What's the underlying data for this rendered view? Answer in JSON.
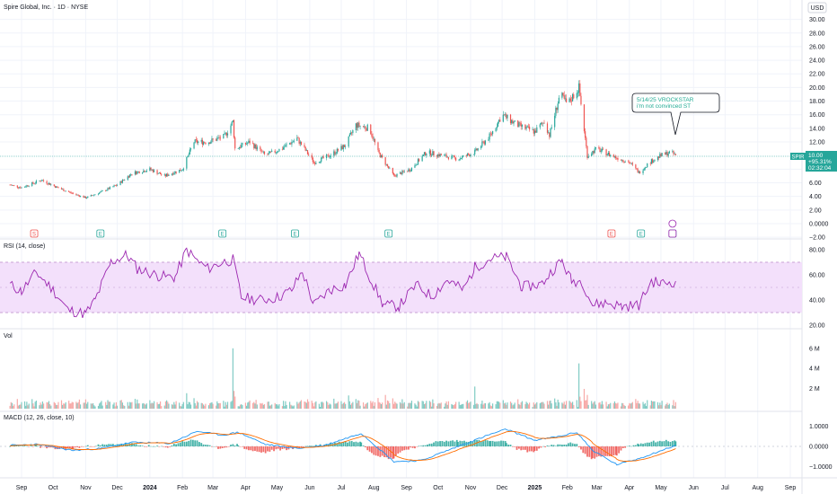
{
  "header": {
    "title": "Spire Global, Inc. · 1D · NYSE",
    "currency": "USD"
  },
  "price_axis": {
    "labels": [
      "30.00",
      "28.00",
      "26.00",
      "24.00",
      "22.00",
      "20.00",
      "18.00",
      "16.00",
      "14.00",
      "12.00",
      "8.00",
      "6.00",
      "4.00",
      "2.00",
      "0.0000",
      "−2.00"
    ]
  },
  "price_tag": {
    "symbol": "SPIR",
    "price": "10.00",
    "change": "+95.31%",
    "countdown": "02:32:04"
  },
  "annotation": {
    "line1": "5/14/25 VROCKSTAR",
    "line2": "i'm not convinced ST"
  },
  "events": [
    "S",
    "E",
    "E",
    "E",
    "E",
    "E",
    "E",
    "E"
  ],
  "rsi": {
    "label": "RSI (14, close)",
    "axis": [
      "80.00",
      "60.00",
      "40.00",
      "20.00"
    ]
  },
  "volume": {
    "label": "Vol",
    "axis": [
      "6 M",
      "4 M",
      "2 M"
    ]
  },
  "macd": {
    "label": "MACD (12, 26, close, 10)",
    "axis": [
      "1.0000",
      "0.0000",
      "−1.0000"
    ]
  },
  "time_axis": {
    "labels": [
      "Sep",
      "Oct",
      "Nov",
      "Dec",
      "2024",
      "Feb",
      "Mar",
      "Apr",
      "May",
      "Jun",
      "Jul",
      "Aug",
      "Sep",
      "Oct",
      "Nov",
      "Dec",
      "2025",
      "Feb",
      "Mar",
      "Apr",
      "May",
      "Jun",
      "Jul",
      "Aug",
      "Sep"
    ]
  },
  "colors": {
    "up": "#26a69a",
    "down": "#ef5350",
    "rsi_line": "#9c27b0",
    "macd_line": "#2196f3",
    "signal_line": "#ff6d00",
    "annotation_text": "#22ab94",
    "tag_bg": "#26a69a"
  },
  "chart_data": {
    "type": "candlestick",
    "x_range": [
      "2023-08-15",
      "2025-09-15"
    ],
    "price_range": [
      -2,
      31
    ],
    "price_path": [
      [
        "2023-08-21",
        5.7
      ],
      [
        "2023-09-01",
        5.3
      ],
      [
        "2023-09-20",
        6.4
      ],
      [
        "2023-10-05",
        5.3
      ],
      [
        "2023-10-20",
        4.4
      ],
      [
        "2023-11-01",
        3.8
      ],
      [
        "2023-11-15",
        4.6
      ],
      [
        "2023-12-01",
        5.7
      ],
      [
        "2023-12-15",
        7.4
      ],
      [
        "2024-01-01",
        8.0
      ],
      [
        "2024-01-15",
        7.0
      ],
      [
        "2024-02-01",
        8.0
      ],
      [
        "2024-02-12",
        12.0
      ],
      [
        "2024-02-25",
        12.0
      ],
      [
        "2024-03-12",
        12.8
      ],
      [
        "2024-03-20",
        15.0
      ],
      [
        "2024-03-22",
        11.0
      ],
      [
        "2024-04-05",
        12.0
      ],
      [
        "2024-04-20",
        10.0
      ],
      [
        "2024-05-05",
        11.0
      ],
      [
        "2024-05-20",
        12.5
      ],
      [
        "2024-06-05",
        9.0
      ],
      [
        "2024-06-20",
        10.0
      ],
      [
        "2024-07-05",
        11.5
      ],
      [
        "2024-07-15",
        14.5
      ],
      [
        "2024-07-28",
        14.0
      ],
      [
        "2024-08-05",
        10.5
      ],
      [
        "2024-08-20",
        7.0
      ],
      [
        "2024-09-05",
        8.0
      ],
      [
        "2024-09-20",
        10.5
      ],
      [
        "2024-10-05",
        10.0
      ],
      [
        "2024-10-20",
        9.5
      ],
      [
        "2024-11-05",
        10.5
      ],
      [
        "2024-11-20",
        13.0
      ],
      [
        "2024-12-01",
        16.0
      ],
      [
        "2024-12-15",
        14.5
      ],
      [
        "2025-01-01",
        13.5
      ],
      [
        "2025-01-10",
        15.0
      ],
      [
        "2025-01-15",
        13.0
      ],
      [
        "2025-01-25",
        19.0
      ],
      [
        "2025-02-01",
        17.5
      ],
      [
        "2025-02-12",
        20.0
      ],
      [
        "2025-02-20",
        10.0
      ],
      [
        "2025-03-01",
        11.0
      ],
      [
        "2025-03-15",
        10.0
      ],
      [
        "2025-04-01",
        9.0
      ],
      [
        "2025-04-10",
        7.5
      ],
      [
        "2025-04-20",
        9.0
      ],
      [
        "2025-05-01",
        10.0
      ],
      [
        "2025-05-10",
        10.5
      ],
      [
        "2025-05-15",
        10.0
      ]
    ],
    "rsi_path": [
      [
        "2023-08-21",
        52
      ],
      [
        "2023-09-01",
        47
      ],
      [
        "2023-09-15",
        62
      ],
      [
        "2023-10-01",
        48
      ],
      [
        "2023-10-15",
        32
      ],
      [
        "2023-11-01",
        29
      ],
      [
        "2023-11-10",
        40
      ],
      [
        "2023-11-25",
        70
      ],
      [
        "2023-12-10",
        76
      ],
      [
        "2023-12-20",
        65
      ],
      [
        "2024-01-10",
        59
      ],
      [
        "2024-01-25",
        58
      ],
      [
        "2024-02-05",
        80
      ],
      [
        "2024-02-15",
        71
      ],
      [
        "2024-02-25",
        65
      ],
      [
        "2024-03-10",
        70
      ],
      [
        "2024-03-20",
        72
      ],
      [
        "2024-03-28",
        42
      ],
      [
        "2024-04-15",
        40
      ],
      [
        "2024-05-01",
        42
      ],
      [
        "2024-05-15",
        48
      ],
      [
        "2024-05-25",
        63
      ],
      [
        "2024-06-05",
        36
      ],
      [
        "2024-06-20",
        48
      ],
      [
        "2024-07-05",
        52
      ],
      [
        "2024-07-18",
        77
      ],
      [
        "2024-07-30",
        55
      ],
      [
        "2024-08-10",
        36
      ],
      [
        "2024-08-25",
        35
      ],
      [
        "2024-09-10",
        52
      ],
      [
        "2024-09-25",
        43
      ],
      [
        "2024-10-10",
        56
      ],
      [
        "2024-10-25",
        48
      ],
      [
        "2024-11-05",
        66
      ],
      [
        "2024-11-20",
        73
      ],
      [
        "2024-12-05",
        74
      ],
      [
        "2024-12-20",
        50
      ],
      [
        "2025-01-08",
        53
      ],
      [
        "2025-01-20",
        66
      ],
      [
        "2025-01-27",
        71
      ],
      [
        "2025-02-05",
        55
      ],
      [
        "2025-02-15",
        55
      ],
      [
        "2025-02-25",
        36
      ],
      [
        "2025-03-10",
        38
      ],
      [
        "2025-03-25",
        35
      ],
      [
        "2025-04-10",
        36
      ],
      [
        "2025-04-22",
        55
      ],
      [
        "2025-05-01",
        53
      ],
      [
        "2025-05-15",
        55
      ]
    ],
    "macd_path": [
      [
        "2023-08-21",
        0.05
      ],
      [
        "2023-09-15",
        0.1
      ],
      [
        "2023-10-20",
        -0.2
      ],
      [
        "2023-11-15",
        -0.1
      ],
      [
        "2023-12-15",
        0.2
      ],
      [
        "2024-01-20",
        0.15
      ],
      [
        "2024-02-15",
        0.75
      ],
      [
        "2024-03-10",
        0.55
      ],
      [
        "2024-03-25",
        0.7
      ],
      [
        "2024-04-20",
        0.1
      ],
      [
        "2024-05-20",
        -0.1
      ],
      [
        "2024-06-15",
        0.05
      ],
      [
        "2024-07-20",
        0.65
      ],
      [
        "2024-08-20",
        -0.75
      ],
      [
        "2024-09-15",
        -0.7
      ],
      [
        "2024-10-20",
        0.0
      ],
      [
        "2024-11-20",
        0.6
      ],
      [
        "2024-12-05",
        0.85
      ],
      [
        "2025-01-01",
        0.3
      ],
      [
        "2025-01-25",
        0.5
      ],
      [
        "2025-02-10",
        0.7
      ],
      [
        "2025-02-25",
        -0.2
      ],
      [
        "2025-03-20",
        -0.9
      ],
      [
        "2025-04-10",
        -0.6
      ],
      [
        "2025-05-15",
        0.05
      ]
    ],
    "annotation_date": "2025-05-14",
    "volume_spikes": [
      [
        "2024-03-20",
        6.0
      ],
      [
        "2025-02-12",
        4.5
      ],
      [
        "2024-07-20",
        2.1
      ],
      [
        "2024-11-05",
        2.2
      ]
    ]
  }
}
